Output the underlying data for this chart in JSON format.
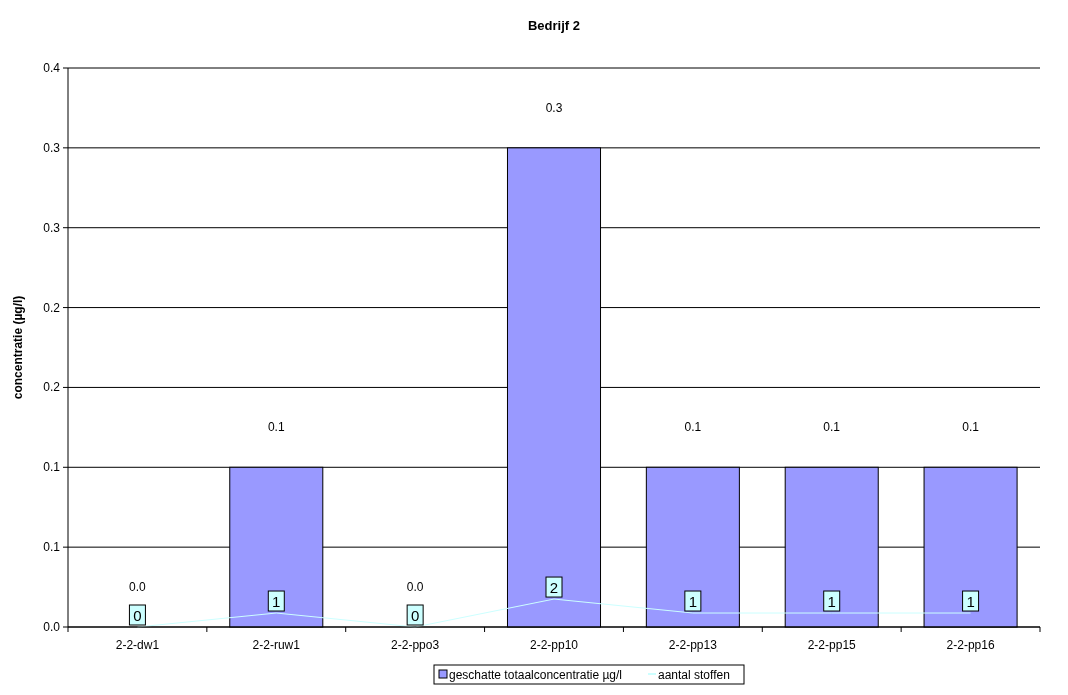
{
  "chart_data": {
    "type": "bar",
    "title": "Bedrijf 2",
    "ylabel": "concentratie (µg/l)",
    "categories": [
      "2-2-dw1",
      "2-2-ruw1",
      "2-2-ppo3",
      "2-2-pp10",
      "2-2-pp13",
      "2-2-pp15",
      "2-2-pp16"
    ],
    "series": [
      {
        "name": "geschatte totaalconcentratie µg/l",
        "color": "#9999ff",
        "values": [
          0,
          0.1,
          0,
          0.3,
          0.1,
          0.1,
          0.1
        ],
        "value_labels": [
          "0.0",
          "0.1",
          "0.0",
          "0.3",
          "0.1",
          "0.1",
          "0.1"
        ]
      },
      {
        "name": "aantal stoffen",
        "type": "line",
        "axis": "y2",
        "marker": "none",
        "line_style": "solid",
        "color": "#ccffff",
        "values": [
          0,
          1,
          0,
          2,
          1,
          1,
          1
        ],
        "value_labels": [
          "0",
          "1",
          "0",
          "2",
          "1",
          "1",
          "1"
        ]
      }
    ],
    "ylim": [
      0,
      0.35
    ],
    "y2lim": [
      0,
      40
    ],
    "yticks": [
      {
        "value": 0,
        "label": "0.0"
      },
      {
        "value": 0.05,
        "label": "0.1"
      },
      {
        "value": 0.1,
        "label": "0.1"
      },
      {
        "value": 0.15,
        "label": "0.2"
      },
      {
        "value": 0.2,
        "label": "0.2"
      },
      {
        "value": 0.25,
        "label": "0.3"
      },
      {
        "value": 0.3,
        "label": "0.3"
      },
      {
        "value": 0.35,
        "label": "0.4"
      }
    ],
    "grid": "y",
    "legend": "bottom"
  }
}
